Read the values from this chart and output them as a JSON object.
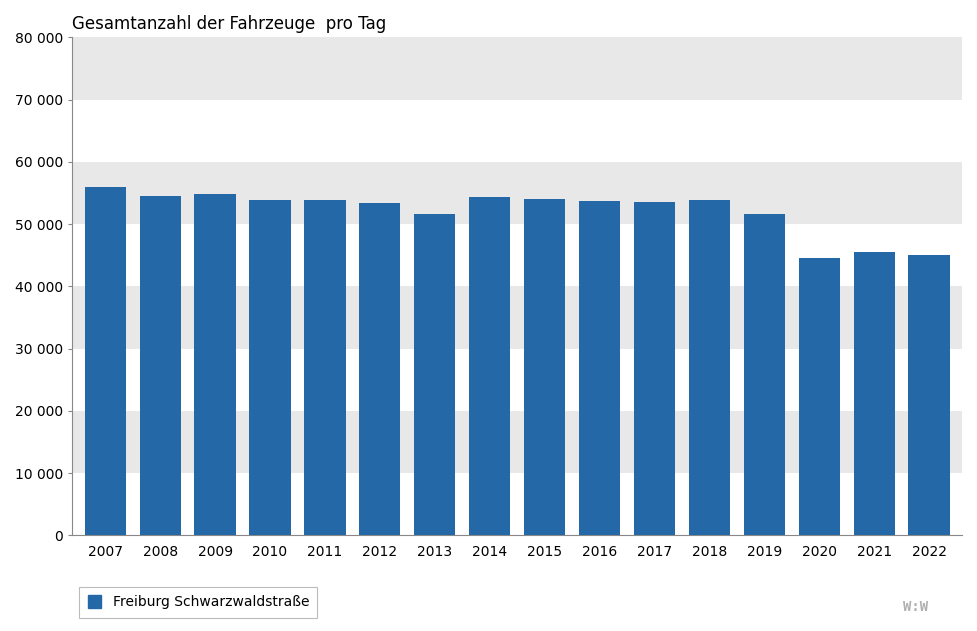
{
  "years": [
    2007,
    2008,
    2009,
    2010,
    2011,
    2012,
    2013,
    2014,
    2015,
    2016,
    2017,
    2018,
    2019,
    2020,
    2021,
    2022
  ],
  "values": [
    55900,
    54500,
    54900,
    53900,
    53800,
    53400,
    51600,
    54400,
    54100,
    53700,
    53600,
    53800,
    51600,
    44600,
    45600,
    45000
  ],
  "bar_color": "#2568a8",
  "title": "Gesamtanzahl der Fahrzeuge  pro Tag",
  "title_fontsize": 12,
  "ylim": [
    0,
    80000
  ],
  "yticks": [
    0,
    10000,
    20000,
    30000,
    40000,
    50000,
    60000,
    70000,
    80000
  ],
  "ytick_labels": [
    "0",
    "10 000",
    "20 000",
    "30 000",
    "40 000",
    "50 000",
    "60 000",
    "70 000",
    "80 000"
  ],
  "legend_label": "Freiburg Schwarzwaldstraße",
  "legend_fontsize": 10,
  "background_fig": "#ffffff",
  "band_colors": [
    "#ffffff",
    "#e8e8e8"
  ],
  "watermark": "W:W",
  "spine_color": "#888888",
  "tick_fontsize": 10
}
